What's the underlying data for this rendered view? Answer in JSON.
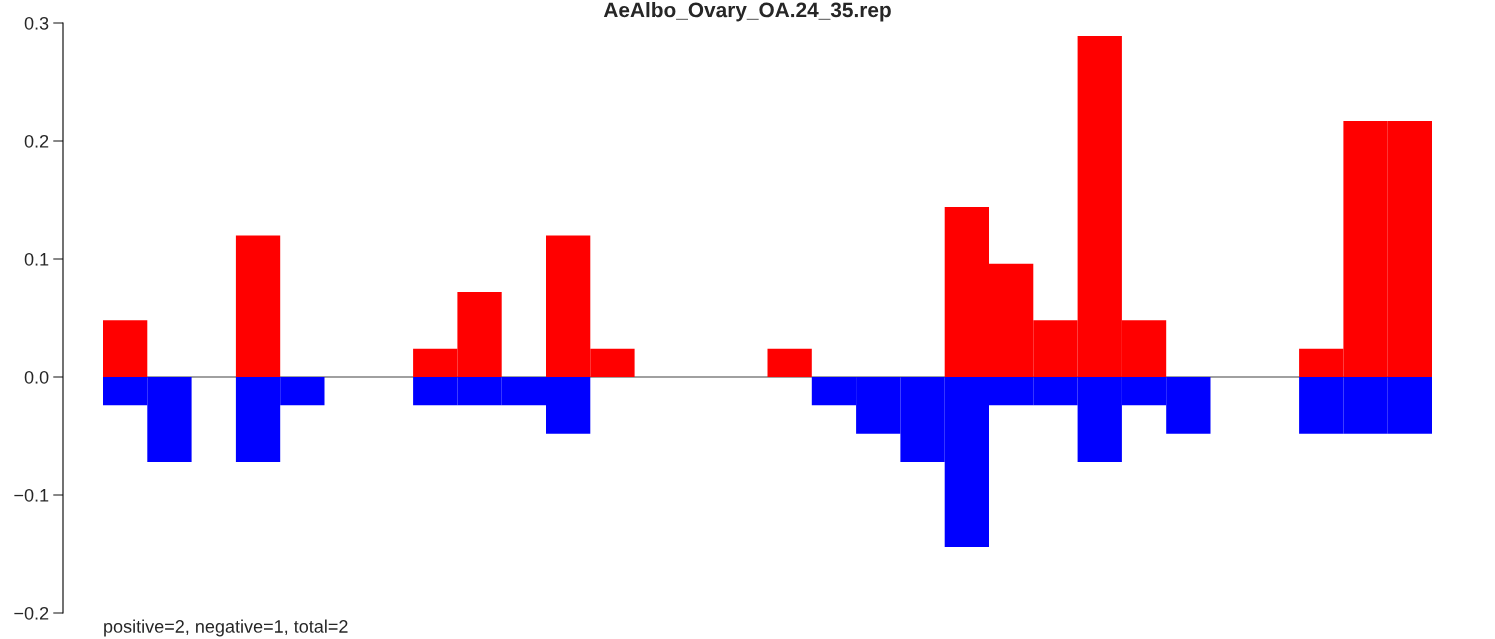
{
  "chart_data": {
    "type": "bar",
    "title": "AeAlbo_Ovary_OA.24_35.rep",
    "categories": [
      null,
      null,
      null,
      null,
      null,
      null,
      null,
      null,
      null,
      null,
      null,
      null,
      null,
      null,
      null,
      null,
      null,
      null,
      null,
      null,
      null,
      null,
      null,
      null,
      null,
      null,
      null,
      null,
      null,
      null
    ],
    "series": [
      {
        "color": "#ff0000",
        "values": [
          0.048,
          0,
          0,
          0.12,
          0,
          0,
          0,
          0.024,
          0.072,
          0,
          0.12,
          0.024,
          0,
          0,
          0,
          0.024,
          0,
          0,
          0,
          0.144,
          0.096,
          0.048,
          0.289,
          0.048,
          0,
          0,
          0,
          0.024,
          0.217,
          0.217
        ]
      },
      {
        "color": "#0000ff",
        "values": [
          -0.024,
          -0.072,
          0,
          -0.072,
          -0.024,
          0,
          0,
          -0.024,
          -0.024,
          -0.024,
          -0.048,
          0,
          0,
          0,
          0,
          0,
          -0.024,
          -0.048,
          -0.072,
          -0.144,
          -0.024,
          -0.024,
          -0.072,
          -0.024,
          -0.048,
          0,
          0,
          -0.048,
          -0.048,
          -0.048
        ]
      }
    ],
    "ylim": [
      -0.2,
      0.3
    ],
    "yticks": [
      {
        "value": -0.2,
        "label": "−0.2"
      },
      {
        "value": -0.1,
        "label": "−0.1"
      },
      {
        "value": 0,
        "label": "0.0"
      },
      0.1,
      0.2,
      0.3
    ],
    "ref_lines": [
      {
        "axis": "y",
        "value": 0,
        "color": "#808080"
      }
    ],
    "annotations": [
      "positive=2, negative=1, total=2"
    ],
    "tick_labels": "y",
    "grid": false,
    "legend": false
  }
}
